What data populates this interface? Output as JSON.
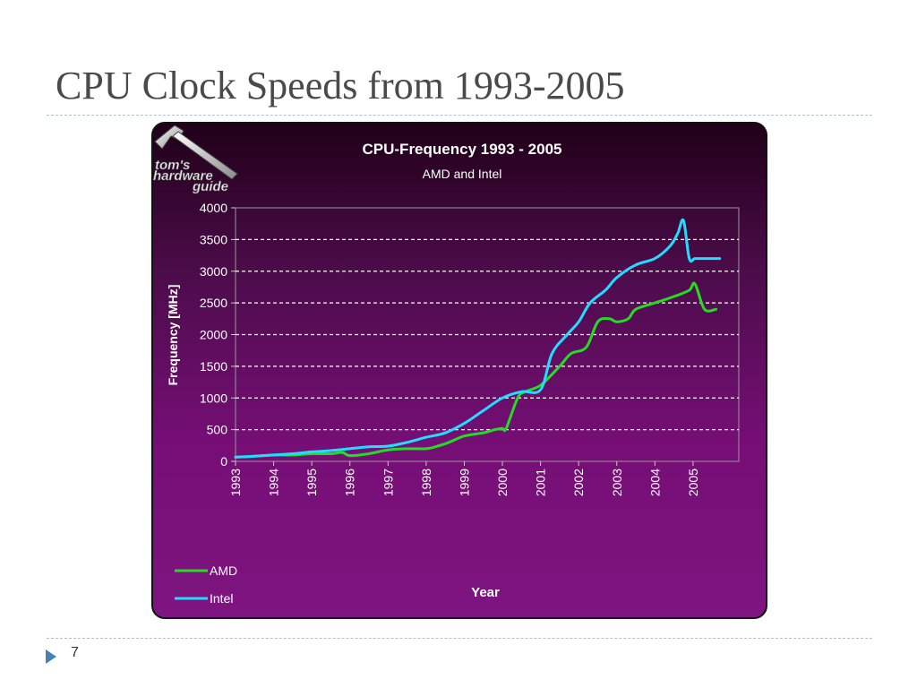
{
  "slide": {
    "title": "CPU Clock Speeds from 1993-2005",
    "page_number": "7"
  },
  "logo": {
    "lines": [
      "tom's",
      "hardware",
      "guide"
    ]
  },
  "chart_data": {
    "type": "line",
    "title": "CPU-Frequency 1993 - 2005",
    "subtitle": "AMD and Intel",
    "xlabel": "Year",
    "ylabel": "Frequency [MHz]",
    "xlim": [
      1993,
      2006.2
    ],
    "ylim": [
      0,
      4000
    ],
    "yticks": [
      0,
      500,
      1000,
      1500,
      2000,
      2500,
      3000,
      3500,
      4000
    ],
    "xticks": [
      "1993",
      "1994",
      "1995",
      "1996",
      "1997",
      "1998",
      "1999",
      "2000",
      "2001",
      "2002",
      "2003",
      "2004",
      "2005"
    ],
    "grid": "horizontal-dashed",
    "legend_position": "bottom-left",
    "colors": {
      "AMD": "#22dd22",
      "Intel": "#22ddff"
    },
    "series": [
      {
        "name": "AMD",
        "x": [
          1993,
          1993.5,
          1994,
          1994.5,
          1995,
          1995.5,
          1995.8,
          1996,
          1996.5,
          1997,
          1997.5,
          1998,
          1998.3,
          1998.6,
          1999,
          1999.5,
          1999.8,
          2000,
          2000.1,
          2000.4,
          2000.6,
          2001,
          2001.5,
          2001.8,
          2002.2,
          2002.5,
          2002.8,
          2003,
          2003.3,
          2003.5,
          2004,
          2004.5,
          2004.9,
          2005.05,
          2005.3,
          2005.6
        ],
        "y": [
          66,
          80,
          100,
          100,
          120,
          120,
          140,
          90,
          120,
          180,
          200,
          200,
          240,
          300,
          400,
          450,
          500,
          520,
          520,
          1000,
          1100,
          1200,
          1500,
          1700,
          1800,
          2200,
          2250,
          2200,
          2250,
          2400,
          2500,
          2600,
          2700,
          2800,
          2400,
          2400
        ]
      },
      {
        "name": "Intel",
        "x": [
          1993,
          1993.5,
          1994,
          1994.5,
          1995,
          1995.5,
          1996,
          1996.5,
          1997,
          1997.5,
          1998,
          1998.5,
          1999,
          1999.5,
          2000,
          2000.5,
          2001,
          2001.3,
          2001.7,
          2002,
          2002.3,
          2002.7,
          2003,
          2003.5,
          2004,
          2004.4,
          2004.6,
          2004.75,
          2004.9,
          2005.05,
          2005.3,
          2005.7
        ],
        "y": [
          66,
          80,
          100,
          120,
          150,
          170,
          200,
          230,
          240,
          300,
          380,
          450,
          600,
          800,
          1000,
          1100,
          1130,
          1700,
          2000,
          2200,
          2500,
          2700,
          2900,
          3100,
          3200,
          3400,
          3600,
          3800,
          3200,
          3200,
          3200,
          3200
        ]
      }
    ]
  }
}
